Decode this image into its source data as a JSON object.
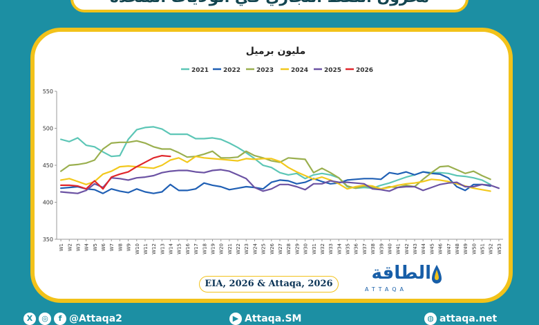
{
  "header": {
    "title": "مخزون النفط التجاري في الولايات المتحدة"
  },
  "source": "EIA, 2026 & Attaqa, 2026",
  "logo": {
    "main": "الطاقة",
    "sub": "ATTAQA"
  },
  "footer": {
    "social_handle": "@Attaqa2",
    "sm_handle": "Attaqa.SM",
    "website": "attaqa.net"
  },
  "colors": {
    "background": "#1c8fa3",
    "frame": "#f2c21a"
  },
  "chart_data": {
    "type": "line",
    "title": "مليون برميل",
    "ylim": [
      350,
      550
    ],
    "yticks": [
      350,
      400,
      450,
      500,
      550
    ],
    "grid": false,
    "legend_position": "top",
    "x": [
      "W1",
      "W2",
      "W3",
      "W4",
      "W5",
      "W6",
      "W7",
      "W8",
      "W9",
      "W10",
      "W11",
      "W12",
      "W13",
      "W14",
      "W15",
      "W16",
      "W17",
      "W18",
      "W19",
      "W20",
      "W21",
      "W22",
      "W23",
      "W24",
      "W25",
      "W26",
      "W27",
      "W28",
      "W29",
      "W30",
      "W31",
      "W32",
      "W33",
      "W34",
      "W35",
      "W36",
      "W37",
      "W38",
      "W39",
      "W40",
      "W41",
      "W42",
      "W43",
      "W44",
      "W45",
      "W46",
      "W47",
      "W48",
      "W49",
      "W50",
      "W51",
      "W52",
      "W53"
    ],
    "series": [
      {
        "name": "2021",
        "color": "#5cc6b6",
        "values": [
          485,
          482,
          487,
          477,
          475,
          468,
          462,
          463,
          485,
          498,
          501,
          502,
          499,
          492,
          492,
          492,
          486,
          486,
          487,
          485,
          480,
          474,
          467,
          459,
          450,
          447,
          440,
          437,
          439,
          432,
          437,
          439,
          437,
          433,
          421,
          419,
          420,
          419,
          423,
          426,
          430,
          434,
          437,
          441,
          440,
          440,
          439,
          436,
          435,
          433,
          430,
          424,
          null
        ]
      },
      {
        "name": "2022",
        "color": "#1f5fb4",
        "values": [
          419,
          420,
          421,
          418,
          417,
          412,
          418,
          415,
          413,
          418,
          414,
          412,
          414,
          424,
          416,
          416,
          418,
          426,
          423,
          421,
          417,
          419,
          421,
          420,
          418,
          427,
          430,
          429,
          425,
          427,
          432,
          428,
          425,
          426,
          430,
          431,
          432,
          432,
          431,
          440,
          438,
          441,
          437,
          441,
          439,
          438,
          433,
          421,
          416,
          424,
          424,
          422,
          null
        ]
      },
      {
        "name": "2023",
        "color": "#9aaf4e",
        "values": [
          442,
          450,
          451,
          453,
          457,
          472,
          480,
          481,
          481,
          483,
          480,
          475,
          472,
          472,
          467,
          461,
          462,
          465,
          469,
          460,
          460,
          461,
          469,
          463,
          460,
          456,
          454,
          460,
          459,
          458,
          440,
          446,
          440,
          433,
          422,
          419,
          422,
          420,
          418,
          421,
          420,
          423,
          421,
          431,
          440,
          448,
          449,
          444,
          439,
          442,
          436,
          431,
          null
        ]
      },
      {
        "name": "2024",
        "color": "#f2c81c",
        "values": [
          430,
          432,
          428,
          424,
          428,
          438,
          442,
          448,
          449,
          448,
          447,
          446,
          450,
          457,
          460,
          454,
          462,
          460,
          459,
          458,
          457,
          456,
          459,
          458,
          459,
          459,
          455,
          447,
          441,
          436,
          431,
          434,
          430,
          425,
          418,
          421,
          423,
          422,
          418,
          420,
          423,
          425,
          426,
          428,
          431,
          430,
          428,
          425,
          422,
          419,
          417,
          415,
          null
        ]
      },
      {
        "name": "2025",
        "color": "#6b52a3",
        "values": [
          414,
          413,
          412,
          416,
          425,
          420,
          433,
          432,
          430,
          433,
          434,
          436,
          440,
          442,
          443,
          443,
          441,
          440,
          443,
          444,
          442,
          437,
          432,
          420,
          415,
          418,
          424,
          424,
          421,
          417,
          425,
          425,
          429,
          427,
          427,
          426,
          425,
          418,
          417,
          415,
          420,
          421,
          421,
          416,
          420,
          424,
          426,
          427,
          421,
          421,
          424,
          423,
          419
        ]
      },
      {
        "name": "2026",
        "color": "#e0262b",
        "values": [
          423,
          423,
          422,
          418,
          429,
          418,
          434,
          438,
          441,
          448,
          454,
          460,
          463,
          462,
          null,
          null,
          null,
          null,
          null,
          null,
          null,
          null,
          null,
          null,
          null,
          null,
          null,
          null,
          null,
          null,
          null,
          null,
          null,
          null,
          null,
          null,
          null,
          null,
          null,
          null,
          null,
          null,
          null,
          null,
          null,
          null,
          null,
          null,
          null,
          null,
          null,
          null,
          null
        ]
      }
    ]
  }
}
